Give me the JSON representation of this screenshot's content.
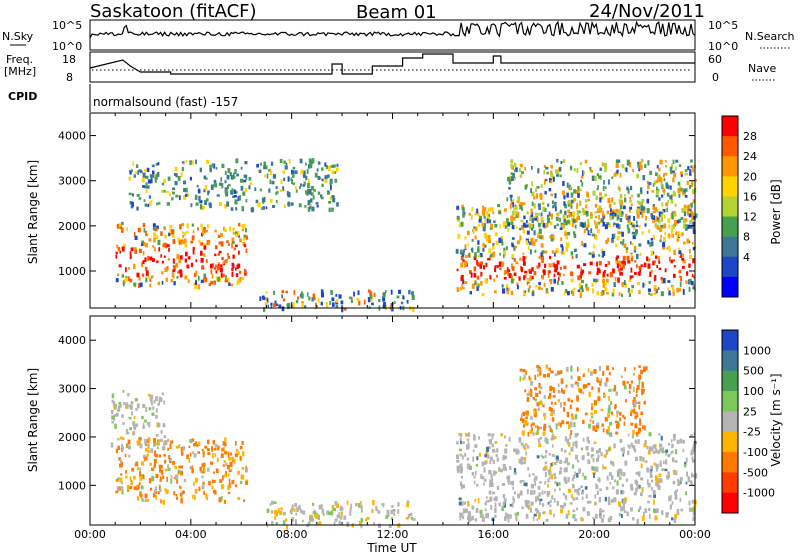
{
  "header": {
    "station": "Saskatoon (fitACF)",
    "beam": "Beam 01",
    "date": "24/Nov/2011"
  },
  "strip": {
    "nsky_label": "N.Sky",
    "nsky_ticks": [
      "10^5",
      "10^0"
    ],
    "nsearch_label": "N.Search",
    "freq_label_1": "Freq.",
    "freq_label_2": "[MHz]",
    "freq_ticks": [
      "18",
      "8"
    ],
    "nave_label": "Nave",
    "nave_ticks": [
      "60",
      "0"
    ],
    "cpid_label": "CPID",
    "cpid_text": "normalsound (fast) -157"
  },
  "chart_data": [
    {
      "type": "heatmap",
      "title": "",
      "xlabel": "Time UT",
      "ylabel": "Slant Range [km]",
      "x_ticks": [
        "00:00",
        "04:00",
        "08:00",
        "12:00",
        "16:00",
        "20:00",
        "00:00"
      ],
      "y_ticks": [
        "1000",
        "2000",
        "3000",
        "4000"
      ],
      "ylim": [
        180,
        4500
      ],
      "colorbar": {
        "label": "Power [dB]",
        "ticks": [
          "28",
          "24",
          "20",
          "16",
          "12",
          "8",
          "4"
        ],
        "colors": [
          "#ff0000",
          "#ff5a00",
          "#ff9600",
          "#ffd200",
          "#b4d232",
          "#46a050",
          "#3c7896",
          "#1e46c8",
          "#0000ff"
        ]
      },
      "regions": [
        {
          "x": [
            1.0,
            6.2
          ],
          "y": [
            700,
            2100
          ],
          "dominant": "orange/red, core ~1100-1500 km red"
        },
        {
          "x": [
            1.5,
            9.8
          ],
          "y": [
            2400,
            3500
          ],
          "dominant": "sparse green/blue"
        },
        {
          "x": [
            6.5,
            12.8
          ],
          "y": [
            180,
            600
          ],
          "dominant": "blue/green with orange streaks"
        },
        {
          "x": [
            14.5,
            24
          ],
          "y": [
            500,
            2500
          ],
          "dominant": "orange/red band at 900-1300 km"
        },
        {
          "x": [
            16.5,
            24
          ],
          "y": [
            2000,
            3500
          ],
          "dominant": "green/orange streaks"
        }
      ]
    },
    {
      "type": "heatmap",
      "title": "",
      "xlabel": "Time UT",
      "ylabel": "Slant Range [km]",
      "x_ticks": [
        "00:00",
        "04:00",
        "08:00",
        "12:00",
        "16:00",
        "20:00",
        "00:00"
      ],
      "y_ticks": [
        "1000",
        "2000",
        "3000",
        "4000"
      ],
      "ylim": [
        180,
        4500
      ],
      "colorbar": {
        "label": "Velocity [m s^-1]",
        "ticks": [
          "1000",
          "500",
          "100",
          "25",
          "-25",
          "-100",
          "-500",
          "-1000"
        ],
        "colors": [
          "#1e46c8",
          "#3c7896",
          "#46a050",
          "#7cc85a",
          "#b4b4b4",
          "#ffb400",
          "#ff7800",
          "#ff3c00",
          "#ff0000"
        ]
      },
      "regions": [
        {
          "x": [
            1.0,
            6.2
          ],
          "y": [
            700,
            2000
          ],
          "dominant": "orange (-100 to -500)"
        },
        {
          "x": [
            0.8,
            3.0
          ],
          "y": [
            1800,
            3000
          ],
          "dominant": "gray (ground scatter)"
        },
        {
          "x": [
            7.0,
            12.8
          ],
          "y": [
            180,
            700
          ],
          "dominant": "gray/yellow"
        },
        {
          "x": [
            14.5,
            24
          ],
          "y": [
            300,
            2100
          ],
          "dominant": "gray band"
        },
        {
          "x": [
            17.0,
            22.0
          ],
          "y": [
            2100,
            3500
          ],
          "dominant": "orange streaks"
        }
      ]
    }
  ]
}
